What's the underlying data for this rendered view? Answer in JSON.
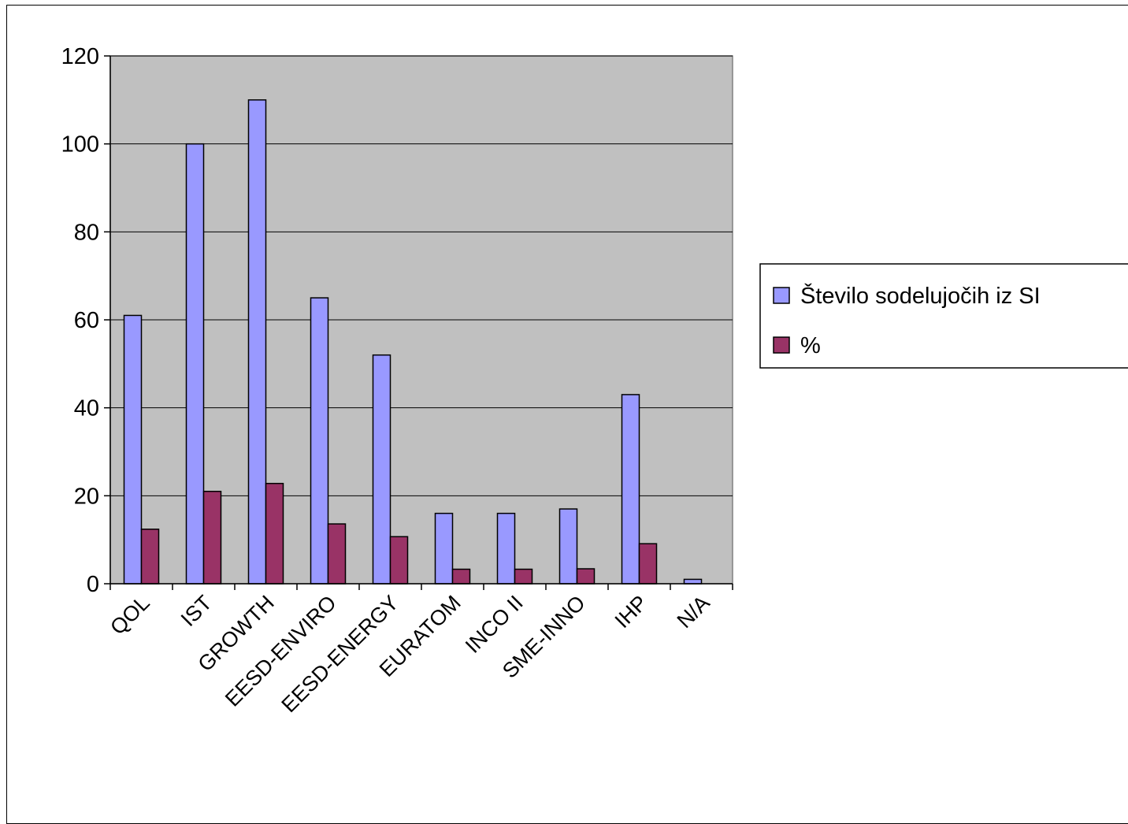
{
  "chart_data": {
    "type": "bar",
    "title": "",
    "xlabel": "",
    "ylabel": "",
    "ylim": [
      0,
      120
    ],
    "yticks": [
      "0",
      "20",
      "40",
      "60",
      "80",
      "100",
      "120"
    ],
    "grid": true,
    "legend_position": "right",
    "categories": [
      "QOL",
      "IST",
      "GROWTH",
      "EESD-ENVIRO",
      "EESD-ENERGY",
      "EURATOM",
      "INCO II",
      "SME-INNO",
      "IHP",
      "N/A"
    ],
    "series": [
      {
        "name": "Število sodelujočih iz SI",
        "color": "#9999ff",
        "values": [
          61,
          100,
          110,
          65,
          52,
          16,
          16,
          17,
          43,
          1
        ]
      },
      {
        "name": "%",
        "color": "#993366",
        "values": [
          12.4,
          21,
          22.8,
          13.6,
          10.7,
          3.3,
          3.3,
          3.4,
          9.1,
          0
        ]
      }
    ],
    "plot_background": "#c0c0c0"
  }
}
